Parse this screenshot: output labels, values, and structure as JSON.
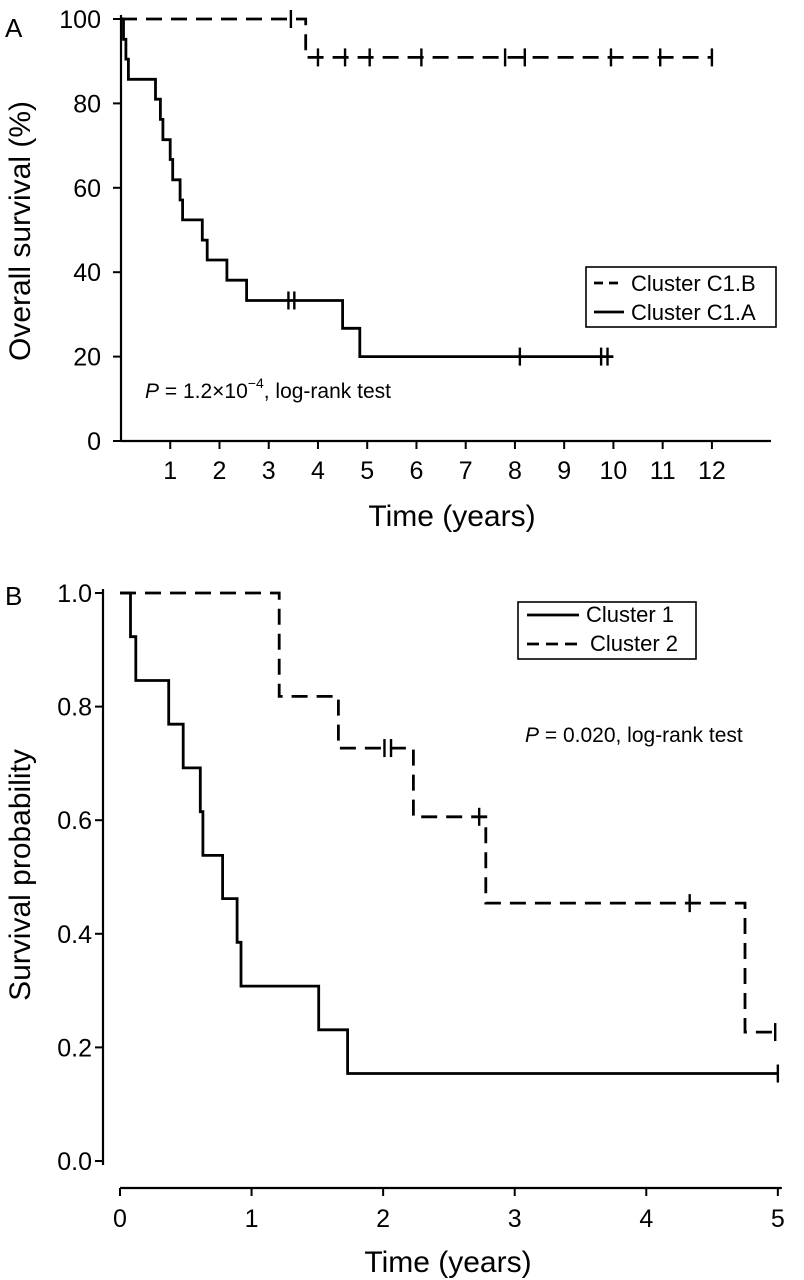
{
  "chart_data": [
    {
      "type": "line",
      "panel_label": "A",
      "xlabel": "Time (years)",
      "ylabel": "Overall survival (%)",
      "xlim": [
        0,
        13.2
      ],
      "ylim": [
        0,
        100
      ],
      "x_ticks": [
        1,
        2,
        3,
        4,
        5,
        6,
        7,
        8,
        9,
        10,
        11,
        12
      ],
      "x_tick_labels": [
        "1",
        "2",
        "3",
        "4",
        "5",
        "6",
        "7",
        "8",
        "9",
        "10",
        "11",
        "12"
      ],
      "y_ticks": [
        0,
        20,
        40,
        60,
        80,
        100
      ],
      "y_tick_labels": [
        "0",
        "20",
        "40",
        "60",
        "80",
        "100"
      ],
      "grid": false,
      "legend_position": "right",
      "annotation": {
        "p_label": "P",
        "equals": " = 1.2×10",
        "exponent": "−4",
        "suffix": ", log-rank test"
      },
      "series": [
        {
          "name": "Cluster C1.B",
          "style": "dashed",
          "steps": [
            [
              0,
              100
            ],
            [
              3.75,
              100
            ],
            [
              3.75,
              90.9
            ],
            [
              12.0,
              90.9
            ]
          ],
          "censor": [
            [
              3.45,
              100
            ],
            [
              4.0,
              90.9
            ],
            [
              4.55,
              90.9
            ],
            [
              5.05,
              90.9
            ],
            [
              6.1,
              90.9
            ],
            [
              7.8,
              90.9
            ],
            [
              8.2,
              90.9
            ],
            [
              9.95,
              90.9
            ],
            [
              10.95,
              90.9
            ],
            [
              12.0,
              90.9
            ]
          ]
        },
        {
          "name": "Cluster C1.A",
          "style": "solid",
          "steps": [
            [
              0,
              100
            ],
            [
              0.05,
              100
            ],
            [
              0.05,
              95.2
            ],
            [
              0.1,
              95.2
            ],
            [
              0.1,
              90.5
            ],
            [
              0.15,
              90.5
            ],
            [
              0.15,
              85.7
            ],
            [
              0.7,
              85.7
            ],
            [
              0.7,
              81.0
            ],
            [
              0.8,
              81.0
            ],
            [
              0.8,
              76.2
            ],
            [
              0.85,
              76.2
            ],
            [
              0.85,
              71.4
            ],
            [
              1.0,
              71.4
            ],
            [
              1.0,
              66.7
            ],
            [
              1.05,
              66.7
            ],
            [
              1.05,
              61.9
            ],
            [
              1.2,
              61.9
            ],
            [
              1.2,
              57.1
            ],
            [
              1.25,
              57.1
            ],
            [
              1.25,
              52.4
            ],
            [
              1.65,
              52.4
            ],
            [
              1.65,
              47.6
            ],
            [
              1.75,
              47.6
            ],
            [
              1.75,
              42.9
            ],
            [
              2.15,
              42.9
            ],
            [
              2.15,
              38.1
            ],
            [
              2.55,
              38.1
            ],
            [
              2.55,
              33.3
            ],
            [
              4.5,
              33.3
            ],
            [
              4.5,
              26.7
            ],
            [
              4.85,
              26.7
            ],
            [
              4.85,
              20.0
            ],
            [
              10.0,
              20.0
            ]
          ],
          "censor": [
            [
              3.4,
              33.3
            ],
            [
              3.52,
              33.3
            ],
            [
              8.1,
              20.0
            ],
            [
              9.75,
              20.0
            ],
            [
              9.88,
              20.0
            ]
          ]
        }
      ]
    },
    {
      "type": "line",
      "panel_label": "B",
      "xlabel": "Time (years)",
      "ylabel": "Survival probability",
      "xlim": [
        0,
        5.1
      ],
      "ylim": [
        0,
        1.0
      ],
      "x_ticks": [
        0,
        1,
        2,
        3,
        4,
        5
      ],
      "x_tick_labels": [
        "0",
        "1",
        "2",
        "3",
        "4",
        "5"
      ],
      "y_ticks": [
        0.0,
        0.2,
        0.4,
        0.6,
        0.8,
        1.0
      ],
      "y_tick_labels": [
        "0.0",
        "0.2",
        "0.4",
        "0.6",
        "0.8",
        "1.0"
      ],
      "grid": false,
      "legend_position": "top-right",
      "annotation": {
        "p_label": "P",
        "equals": " = 0.020, log-rank test"
      },
      "series": [
        {
          "name": "Cluster 1",
          "style": "solid",
          "steps": [
            [
              0,
              1.0
            ],
            [
              0.08,
              1.0
            ],
            [
              0.08,
              0.923
            ],
            [
              0.12,
              0.923
            ],
            [
              0.12,
              0.846
            ],
            [
              0.37,
              0.846
            ],
            [
              0.37,
              0.769
            ],
            [
              0.48,
              0.769
            ],
            [
              0.48,
              0.692
            ],
            [
              0.61,
              0.692
            ],
            [
              0.61,
              0.615
            ],
            [
              0.63,
              0.615
            ],
            [
              0.63,
              0.538
            ],
            [
              0.78,
              0.538
            ],
            [
              0.78,
              0.462
            ],
            [
              0.89,
              0.462
            ],
            [
              0.89,
              0.385
            ],
            [
              0.92,
              0.385
            ],
            [
              0.92,
              0.308
            ],
            [
              1.51,
              0.308
            ],
            [
              1.51,
              0.231
            ],
            [
              1.73,
              0.231
            ],
            [
              1.73,
              0.154
            ],
            [
              5.0,
              0.154
            ]
          ],
          "censor": [
            [
              5.0,
              0.154
            ]
          ]
        },
        {
          "name": "Cluster 2",
          "style": "dashed",
          "steps": [
            [
              0,
              1.0
            ],
            [
              1.21,
              1.0
            ],
            [
              1.21,
              0.818
            ],
            [
              1.66,
              0.818
            ],
            [
              1.66,
              0.727
            ],
            [
              2.23,
              0.727
            ],
            [
              2.23,
              0.606
            ],
            [
              2.78,
              0.606
            ],
            [
              2.78,
              0.454
            ],
            [
              4.75,
              0.454
            ],
            [
              4.75,
              0.227
            ],
            [
              5.0,
              0.227
            ]
          ],
          "censor": [
            [
              2.01,
              0.727
            ],
            [
              2.06,
              0.727
            ],
            [
              2.73,
              0.606
            ],
            [
              4.33,
              0.454
            ],
            [
              4.98,
              0.227
            ]
          ]
        }
      ]
    }
  ]
}
